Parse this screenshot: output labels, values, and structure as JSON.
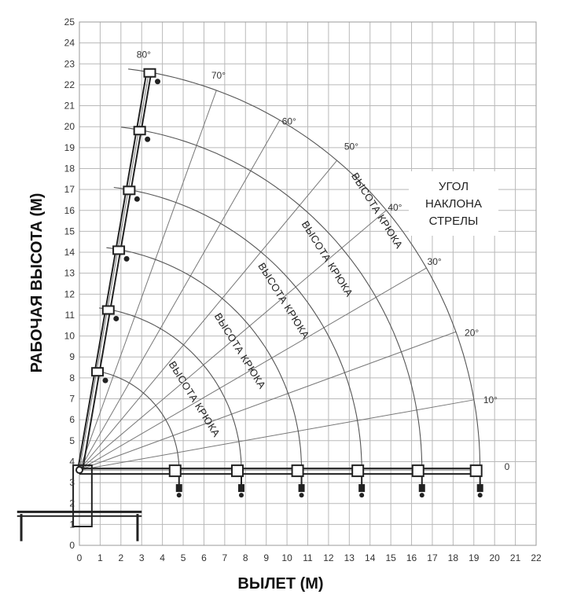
{
  "chart_data": {
    "type": "diagram",
    "xlabel": "ВЫЛЕТ (М)",
    "ylabel": "РАБОЧАЯ ВЫСОТА (М)",
    "x_ticks": [
      "0",
      "1",
      "2",
      "3",
      "4",
      "5",
      "6",
      "7",
      "8",
      "9",
      "10",
      "11",
      "12",
      "13",
      "14",
      "15",
      "16",
      "17",
      "18",
      "19",
      "20",
      "21",
      "22"
    ],
    "y_ticks": [
      "0",
      "1",
      "2",
      "3",
      "4",
      "5",
      "6",
      "7",
      "8",
      "9",
      "10",
      "11",
      "12",
      "13",
      "14",
      "15",
      "16",
      "17",
      "18",
      "19",
      "20",
      "21",
      "22",
      "23",
      "24",
      "25"
    ],
    "xlim": [
      0,
      22
    ],
    "ylim": [
      0,
      25
    ],
    "grid": true,
    "legend_lines": [
      "УГОЛ",
      "НАКЛОНА",
      "СТРЕЛЫ"
    ],
    "angle_labels": [
      {
        "text": "80°",
        "x": 3.1,
        "y": 23.3
      },
      {
        "text": "70°",
        "x": 6.7,
        "y": 22.3
      },
      {
        "text": "60°",
        "x": 10.1,
        "y": 20.1
      },
      {
        "text": "50°",
        "x": 13.1,
        "y": 18.9
      },
      {
        "text": "40°",
        "x": 15.2,
        "y": 16.0
      },
      {
        "text": "30°",
        "x": 17.1,
        "y": 13.4
      },
      {
        "text": "20°",
        "x": 18.9,
        "y": 10.0
      },
      {
        "text": "10°",
        "x": 19.8,
        "y": 6.8
      },
      {
        "text": "0",
        "x": 20.6,
        "y": 3.6
      }
    ],
    "hook_height_labels": [
      {
        "text": "ВЫСОТА КРЮКА",
        "x": 5.4,
        "y": 6.9
      },
      {
        "text": "ВЫСОТА КРЮКА",
        "x": 7.6,
        "y": 9.2
      },
      {
        "text": "ВЫСОТА КРЮКА",
        "x": 9.7,
        "y": 11.6
      },
      {
        "text": "ВЫСОТА КРЮКА",
        "x": 11.8,
        "y": 13.6
      },
      {
        "text": "ВЫСОТА КРЮКА",
        "x": 14.2,
        "y": 15.9
      }
    ],
    "pivot": {
      "x": 0,
      "y": 3.6
    },
    "boom_radii": [
      4.8,
      7.8,
      10.7,
      13.6,
      16.5,
      19.3
    ],
    "ray_angles_deg": [
      10,
      20,
      30,
      40,
      50,
      60,
      70,
      80
    ]
  }
}
